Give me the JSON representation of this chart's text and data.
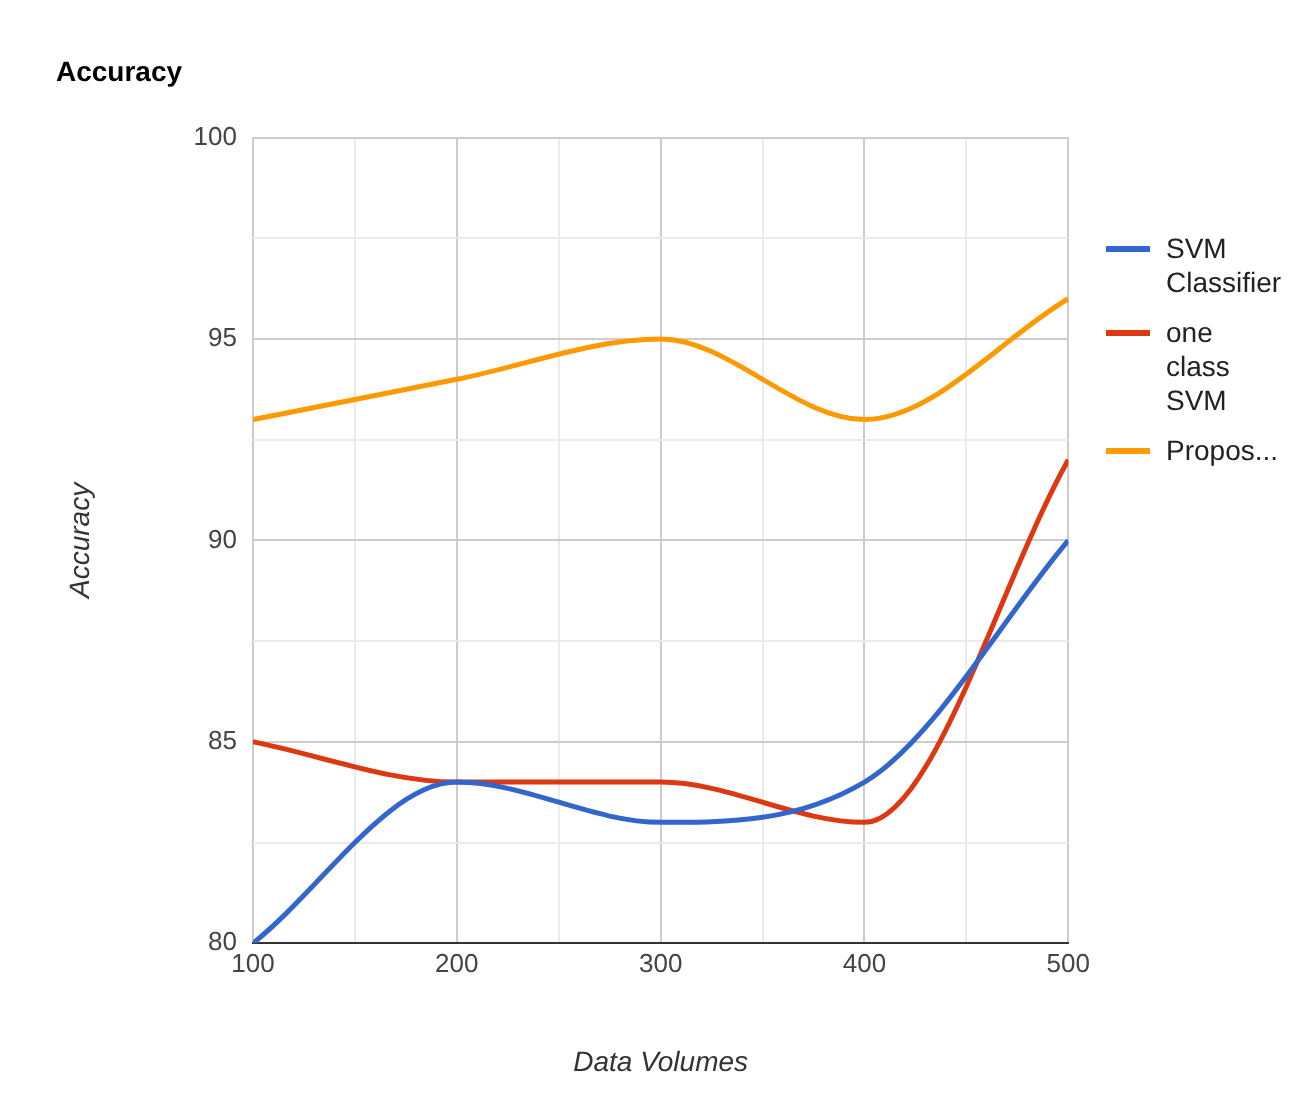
{
  "chart_data": {
    "type": "line",
    "title": "Accuracy",
    "xlabel": "Data Volumes",
    "ylabel": "Accuracy",
    "x": [
      100,
      200,
      300,
      400,
      500
    ],
    "series": [
      {
        "name": "SVM Classifier",
        "color": "#3366cc",
        "values": [
          80,
          84,
          83,
          84,
          90
        ]
      },
      {
        "name": "one class SVM",
        "color": "#dc3912",
        "values": [
          85,
          84,
          84,
          83,
          92
        ]
      },
      {
        "name": "Propos...",
        "color": "#ff9900",
        "values": [
          93,
          94,
          95,
          93,
          96
        ]
      }
    ],
    "xlim": [
      100,
      500
    ],
    "xticks": [
      100,
      {
        "value": 150,
        "label": null
      },
      200,
      {
        "value": 250,
        "label": null
      },
      300,
      {
        "value": 350,
        "label": null
      },
      400,
      {
        "value": 450,
        "label": null
      },
      500
    ],
    "ylim": [
      80,
      100
    ],
    "yticks": [
      80,
      {
        "value": 82.5,
        "label": null
      },
      85,
      {
        "value": 87.5,
        "label": null
      },
      90,
      {
        "value": 92.5,
        "label": null
      },
      95,
      {
        "value": 97.5,
        "label": null
      },
      100
    ],
    "grid": true,
    "legend": "right",
    "marker": "none",
    "line_style": "solid"
  }
}
